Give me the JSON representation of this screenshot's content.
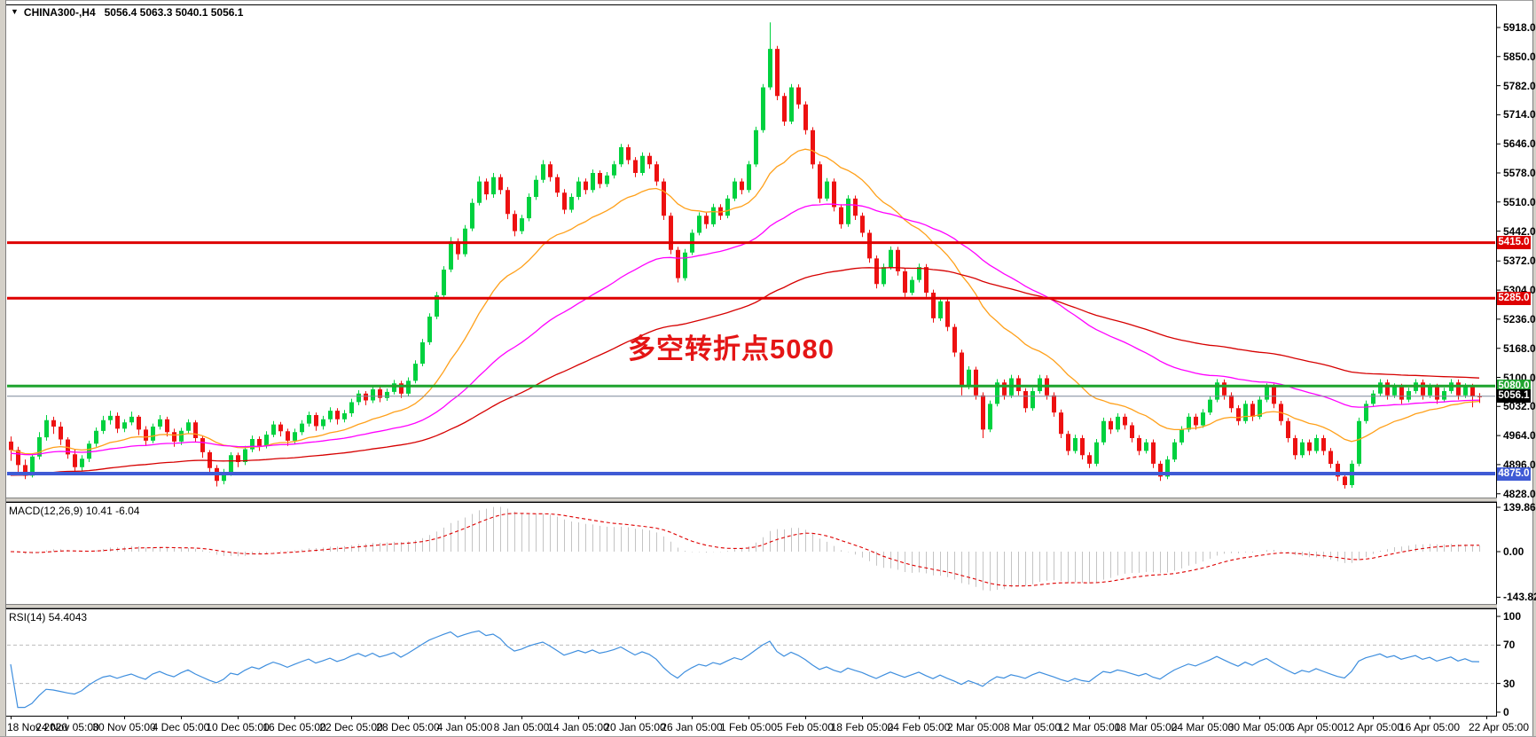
{
  "window": {
    "symbol": "CHINA300-,H4",
    "quote": "5056.4 5063.3 5040.1 5056.1"
  },
  "chart_data": {
    "type": "candlestick",
    "title": "CHINA300-,H4",
    "timeframe": "H4",
    "ohlc_current": {
      "open": 5056.4,
      "high": 5063.3,
      "low": 5040.1,
      "close": 5056.1
    },
    "y_ticks": [
      "5918.0",
      "5850.0",
      "5782.0",
      "5714.0",
      "5646.0",
      "5578.0",
      "5510.0",
      "5442.0",
      "5372.0",
      "5304.0",
      "5236.0",
      "5168.0",
      "5100.0",
      "5032.0",
      "4964.0",
      "4896.0",
      "4828.0"
    ],
    "x_labels": [
      "18 Nov 2020",
      "24 Nov 05:00",
      "30 Nov 05:00",
      "4 Dec 05:00",
      "10 Dec 05:00",
      "16 Dec 05:00",
      "22 Dec 05:00",
      "28 Dec 05:00",
      "4 Jan 05:00",
      "8 Jan 05:00",
      "14 Jan 05:00",
      "20 Jan 05:00",
      "26 Jan 05:00",
      "1 Feb 05:00",
      "5 Feb 05:00",
      "18 Feb 05:00",
      "24 Feb 05:00",
      "2 Mar 05:00",
      "8 Mar 05:00",
      "12 Mar 05:00",
      "18 Mar 05:00",
      "24 Mar 05:00",
      "30 Mar 05:00",
      "6 Apr 05:00",
      "12 Apr 05:00",
      "16 Apr 05:00",
      "22 Apr 05:00"
    ],
    "bars_per_x_label": 8,
    "up_color": "#00D13F",
    "down_color": "#ED1111",
    "candles": [
      [
        4950,
        4962,
        4905,
        4930
      ],
      [
        4930,
        4938,
        4872,
        4895
      ],
      [
        4895,
        4908,
        4862,
        4870
      ],
      [
        4870,
        4922,
        4866,
        4915
      ],
      [
        4915,
        4972,
        4908,
        4960
      ],
      [
        4960,
        5012,
        4952,
        5000
      ],
      [
        5000,
        5008,
        4968,
        4985
      ],
      [
        4985,
        4996,
        4942,
        4955
      ],
      [
        4955,
        4960,
        4910,
        4920
      ],
      [
        4920,
        4932,
        4875,
        4890
      ],
      [
        4890,
        4918,
        4882,
        4910
      ],
      [
        4910,
        4952,
        4902,
        4945
      ],
      [
        4945,
        4983,
        4938,
        4975
      ],
      [
        4975,
        5010,
        4968,
        5000
      ],
      [
        5000,
        5022,
        4990,
        5010
      ],
      [
        5010,
        5018,
        4970,
        4980
      ],
      [
        4980,
        5002,
        4972,
        4995
      ],
      [
        4995,
        5020,
        4988,
        5008
      ],
      [
        5008,
        5012,
        4965,
        4978
      ],
      [
        4978,
        4986,
        4940,
        4952
      ],
      [
        4952,
        4992,
        4946,
        4985
      ],
      [
        4985,
        5012,
        4978,
        5002
      ],
      [
        5002,
        5008,
        4962,
        4972
      ],
      [
        4972,
        4980,
        4938,
        4950
      ],
      [
        4950,
        4982,
        4942,
        4975
      ],
      [
        4975,
        5002,
        4968,
        4995
      ],
      [
        4995,
        5000,
        4948,
        4958
      ],
      [
        4958,
        4964,
        4912,
        4925
      ],
      [
        4925,
        4930,
        4876,
        4888
      ],
      [
        4888,
        4895,
        4845,
        4858
      ],
      [
        4858,
        4886,
        4850,
        4878
      ],
      [
        4878,
        4925,
        4870,
        4918
      ],
      [
        4918,
        4924,
        4890,
        4902
      ],
      [
        4902,
        4940,
        4895,
        4932
      ],
      [
        4932,
        4964,
        4925,
        4956
      ],
      [
        4956,
        4962,
        4928,
        4940
      ],
      [
        4940,
        4974,
        4934,
        4966
      ],
      [
        4966,
        4998,
        4960,
        4990
      ],
      [
        4990,
        4996,
        4962,
        4974
      ],
      [
        4974,
        4980,
        4940,
        4952
      ],
      [
        4952,
        4980,
        4945,
        4972
      ],
      [
        4972,
        5000,
        4965,
        4992
      ],
      [
        4992,
        5020,
        4985,
        5012
      ],
      [
        5012,
        5018,
        4975,
        4986
      ],
      [
        4986,
        5010,
        4978,
        5002
      ],
      [
        5002,
        5030,
        4995,
        5022
      ],
      [
        5022,
        5028,
        4990,
        5002
      ],
      [
        5002,
        5024,
        4995,
        5016
      ],
      [
        5016,
        5050,
        5008,
        5042
      ],
      [
        5042,
        5070,
        5035,
        5062
      ],
      [
        5062,
        5068,
        5035,
        5046
      ],
      [
        5046,
        5080,
        5040,
        5072
      ],
      [
        5072,
        5078,
        5042,
        5052
      ],
      [
        5052,
        5074,
        5045,
        5066
      ],
      [
        5066,
        5094,
        5060,
        5086
      ],
      [
        5086,
        5092,
        5052,
        5062
      ],
      [
        5062,
        5100,
        5056,
        5092
      ],
      [
        5092,
        5140,
        5086,
        5132
      ],
      [
        5132,
        5190,
        5126,
        5182
      ],
      [
        5182,
        5250,
        5176,
        5242
      ],
      [
        5242,
        5300,
        5236,
        5292
      ],
      [
        5292,
        5360,
        5286,
        5352
      ],
      [
        5352,
        5428,
        5346,
        5418
      ],
      [
        5418,
        5425,
        5375,
        5388
      ],
      [
        5388,
        5456,
        5382,
        5448
      ],
      [
        5448,
        5518,
        5442,
        5508
      ],
      [
        5508,
        5570,
        5502,
        5558
      ],
      [
        5558,
        5565,
        5515,
        5528
      ],
      [
        5528,
        5578,
        5520,
        5568
      ],
      [
        5568,
        5575,
        5528,
        5538
      ],
      [
        5538,
        5545,
        5470,
        5482
      ],
      [
        5482,
        5490,
        5430,
        5442
      ],
      [
        5442,
        5480,
        5435,
        5472
      ],
      [
        5472,
        5530,
        5465,
        5522
      ],
      [
        5522,
        5572,
        5515,
        5562
      ],
      [
        5562,
        5608,
        5555,
        5598
      ],
      [
        5598,
        5605,
        5558,
        5568
      ],
      [
        5568,
        5575,
        5522,
        5532
      ],
      [
        5532,
        5540,
        5482,
        5492
      ],
      [
        5492,
        5530,
        5485,
        5522
      ],
      [
        5522,
        5568,
        5515,
        5558
      ],
      [
        5558,
        5565,
        5528,
        5538
      ],
      [
        5538,
        5586,
        5532,
        5578
      ],
      [
        5578,
        5584,
        5542,
        5552
      ],
      [
        5552,
        5580,
        5545,
        5572
      ],
      [
        5572,
        5606,
        5565,
        5598
      ],
      [
        5598,
        5646,
        5592,
        5638
      ],
      [
        5638,
        5645,
        5598,
        5608
      ],
      [
        5608,
        5615,
        5568,
        5578
      ],
      [
        5578,
        5626,
        5572,
        5618
      ],
      [
        5618,
        5625,
        5588,
        5598
      ],
      [
        5598,
        5605,
        5548,
        5558
      ],
      [
        5558,
        5565,
        5468,
        5478
      ],
      [
        5478,
        5485,
        5388,
        5398
      ],
      [
        5398,
        5405,
        5322,
        5332
      ],
      [
        5332,
        5400,
        5326,
        5392
      ],
      [
        5392,
        5446,
        5386,
        5438
      ],
      [
        5438,
        5486,
        5432,
        5478
      ],
      [
        5478,
        5485,
        5448,
        5458
      ],
      [
        5458,
        5506,
        5452,
        5498
      ],
      [
        5498,
        5505,
        5468,
        5478
      ],
      [
        5478,
        5526,
        5472,
        5518
      ],
      [
        5518,
        5566,
        5512,
        5558
      ],
      [
        5558,
        5565,
        5528,
        5538
      ],
      [
        5538,
        5606,
        5532,
        5598
      ],
      [
        5598,
        5686,
        5592,
        5678
      ],
      [
        5678,
        5786,
        5672,
        5778
      ],
      [
        5778,
        5930,
        5772,
        5868
      ],
      [
        5868,
        5875,
        5748,
        5758
      ],
      [
        5758,
        5765,
        5688,
        5698
      ],
      [
        5698,
        5786,
        5692,
        5778
      ],
      [
        5778,
        5785,
        5728,
        5738
      ],
      [
        5738,
        5745,
        5668,
        5678
      ],
      [
        5678,
        5685,
        5588,
        5598
      ],
      [
        5598,
        5605,
        5508,
        5518
      ],
      [
        5518,
        5566,
        5512,
        5558
      ],
      [
        5558,
        5565,
        5488,
        5498
      ],
      [
        5498,
        5505,
        5448,
        5458
      ],
      [
        5458,
        5526,
        5452,
        5518
      ],
      [
        5518,
        5525,
        5468,
        5478
      ],
      [
        5478,
        5485,
        5428,
        5438
      ],
      [
        5438,
        5445,
        5368,
        5378
      ],
      [
        5378,
        5385,
        5308,
        5318
      ],
      [
        5318,
        5366,
        5312,
        5358
      ],
      [
        5358,
        5406,
        5352,
        5398
      ],
      [
        5398,
        5405,
        5338,
        5348
      ],
      [
        5348,
        5355,
        5288,
        5298
      ],
      [
        5298,
        5336,
        5292,
        5328
      ],
      [
        5328,
        5366,
        5322,
        5358
      ],
      [
        5358,
        5365,
        5288,
        5298
      ],
      [
        5298,
        5305,
        5228,
        5238
      ],
      [
        5238,
        5286,
        5232,
        5278
      ],
      [
        5278,
        5285,
        5208,
        5218
      ],
      [
        5218,
        5225,
        5148,
        5158
      ],
      [
        5158,
        5165,
        5058,
        5078
      ],
      [
        5078,
        5126,
        5072,
        5118
      ],
      [
        5118,
        5125,
        5048,
        5058
      ],
      [
        5058,
        5065,
        4958,
        4978
      ],
      [
        4978,
        5046,
        4972,
        5038
      ],
      [
        5038,
        5096,
        5032,
        5088
      ],
      [
        5088,
        5095,
        5048,
        5058
      ],
      [
        5058,
        5106,
        5052,
        5098
      ],
      [
        5098,
        5105,
        5058,
        5068
      ],
      [
        5068,
        5075,
        5018,
        5028
      ],
      [
        5028,
        5076,
        5022,
        5068
      ],
      [
        5068,
        5106,
        5062,
        5098
      ],
      [
        5098,
        5105,
        5048,
        5058
      ],
      [
        5058,
        5065,
        5008,
        5018
      ],
      [
        5018,
        5025,
        4958,
        4968
      ],
      [
        4968,
        4975,
        4918,
        4928
      ],
      [
        4928,
        4966,
        4922,
        4958
      ],
      [
        4958,
        4965,
        4908,
        4918
      ],
      [
        4918,
        4925,
        4888,
        4898
      ],
      [
        4898,
        4956,
        4892,
        4948
      ],
      [
        4948,
        5006,
        4942,
        4998
      ],
      [
        4998,
        5005,
        4968,
        4978
      ],
      [
        4978,
        5016,
        4972,
        5008
      ],
      [
        5008,
        5015,
        4978,
        4988
      ],
      [
        4988,
        4995,
        4948,
        4958
      ],
      [
        4958,
        4965,
        4918,
        4928
      ],
      [
        4928,
        4956,
        4922,
        4948
      ],
      [
        4948,
        4955,
        4888,
        4898
      ],
      [
        4898,
        4905,
        4858,
        4868
      ],
      [
        4868,
        4916,
        4862,
        4908
      ],
      [
        4908,
        4956,
        4902,
        4948
      ],
      [
        4948,
        4986,
        4942,
        4978
      ],
      [
        4978,
        5016,
        4972,
        5008
      ],
      [
        5008,
        5015,
        4978,
        4988
      ],
      [
        4988,
        5026,
        4982,
        5018
      ],
      [
        5018,
        5056,
        5012,
        5048
      ],
      [
        5048,
        5096,
        5042,
        5088
      ],
      [
        5088,
        5095,
        5048,
        5058
      ],
      [
        5058,
        5065,
        5018,
        5028
      ],
      [
        5028,
        5035,
        4988,
        4998
      ],
      [
        4998,
        5046,
        4992,
        5038
      ],
      [
        5038,
        5045,
        4998,
        5008
      ],
      [
        5008,
        5056,
        5002,
        5048
      ],
      [
        5048,
        5086,
        5042,
        5078
      ],
      [
        5078,
        5085,
        5028,
        5038
      ],
      [
        5038,
        5045,
        4988,
        4998
      ],
      [
        4998,
        5005,
        4948,
        4958
      ],
      [
        4958,
        4965,
        4908,
        4918
      ],
      [
        4918,
        4956,
        4912,
        4948
      ],
      [
        4948,
        4955,
        4918,
        4928
      ],
      [
        4928,
        4966,
        4922,
        4958
      ],
      [
        4958,
        4965,
        4918,
        4928
      ],
      [
        4928,
        4935,
        4888,
        4898
      ],
      [
        4898,
        4905,
        4858,
        4868
      ],
      [
        4868,
        4875,
        4840,
        4848
      ],
      [
        4848,
        4906,
        4842,
        4898
      ],
      [
        4898,
        5006,
        4892,
        4998
      ],
      [
        4998,
        5046,
        4992,
        5038
      ],
      [
        5038,
        5070,
        5032,
        5062
      ],
      [
        5062,
        5096,
        5056,
        5088
      ],
      [
        5088,
        5095,
        5048,
        5058
      ],
      [
        5058,
        5086,
        5052,
        5078
      ],
      [
        5078,
        5085,
        5038,
        5048
      ],
      [
        5048,
        5076,
        5042,
        5068
      ],
      [
        5068,
        5096,
        5062,
        5088
      ],
      [
        5088,
        5095,
        5048,
        5058
      ],
      [
        5058,
        5086,
        5052,
        5078
      ],
      [
        5078,
        5085,
        5038,
        5048
      ],
      [
        5048,
        5076,
        5042,
        5068
      ],
      [
        5068,
        5096,
        5062,
        5088
      ],
      [
        5088,
        5095,
        5048,
        5058
      ],
      [
        5058,
        5086,
        5052,
        5078
      ],
      [
        5078,
        5085,
        5030,
        5056.4
      ],
      [
        5056.4,
        5063.3,
        5040.1,
        5056.1
      ]
    ],
    "moving_averages": [
      {
        "name": "fast-ma",
        "period": 21,
        "color": "#FFA01A"
      },
      {
        "name": "medium-ma",
        "period": 55,
        "color": "#FF00FF"
      },
      {
        "name": "slow-ma",
        "period": 110,
        "color": "#D60000"
      }
    ],
    "levels": [
      {
        "label": "5415.0",
        "price": 5415.0,
        "color": "#DE0000",
        "width": 3
      },
      {
        "label": "5285.0",
        "price": 5285.0,
        "color": "#DE0000",
        "width": 3
      },
      {
        "label": "5080.0",
        "price": 5080.0,
        "color": "#1EA32E",
        "width": 3
      },
      {
        "label": "4875.0",
        "price": 4875.0,
        "color": "#3F5BD5",
        "width": 4
      }
    ],
    "current_price": {
      "label": "5056.1",
      "price": 5056.1,
      "line_color": "#7A8799",
      "tag_bg": "#000000"
    },
    "annotation": {
      "text": "多空转折点5080",
      "color": "#E41515",
      "bar": 87,
      "price_top": 5219,
      "font_px": 31
    },
    "macd": {
      "label": "MACD(12,26,9)",
      "value": "10.41",
      "signal_value": "-6.04",
      "fast": 12,
      "slow": 26,
      "signal": 9,
      "axis_ticks": [
        "139.86",
        "0.00",
        "-143.82"
      ],
      "hist_color": "#C4C4C4",
      "signal_color": "#DE0000"
    },
    "rsi": {
      "label": "RSI(14)",
      "value": "54.4043",
      "period": 14,
      "axis_ticks": [
        "100",
        "70",
        "30",
        "0"
      ],
      "levels": [
        70,
        30
      ],
      "color": "#3E8EDE",
      "level_color": "#BDBDBD"
    }
  }
}
